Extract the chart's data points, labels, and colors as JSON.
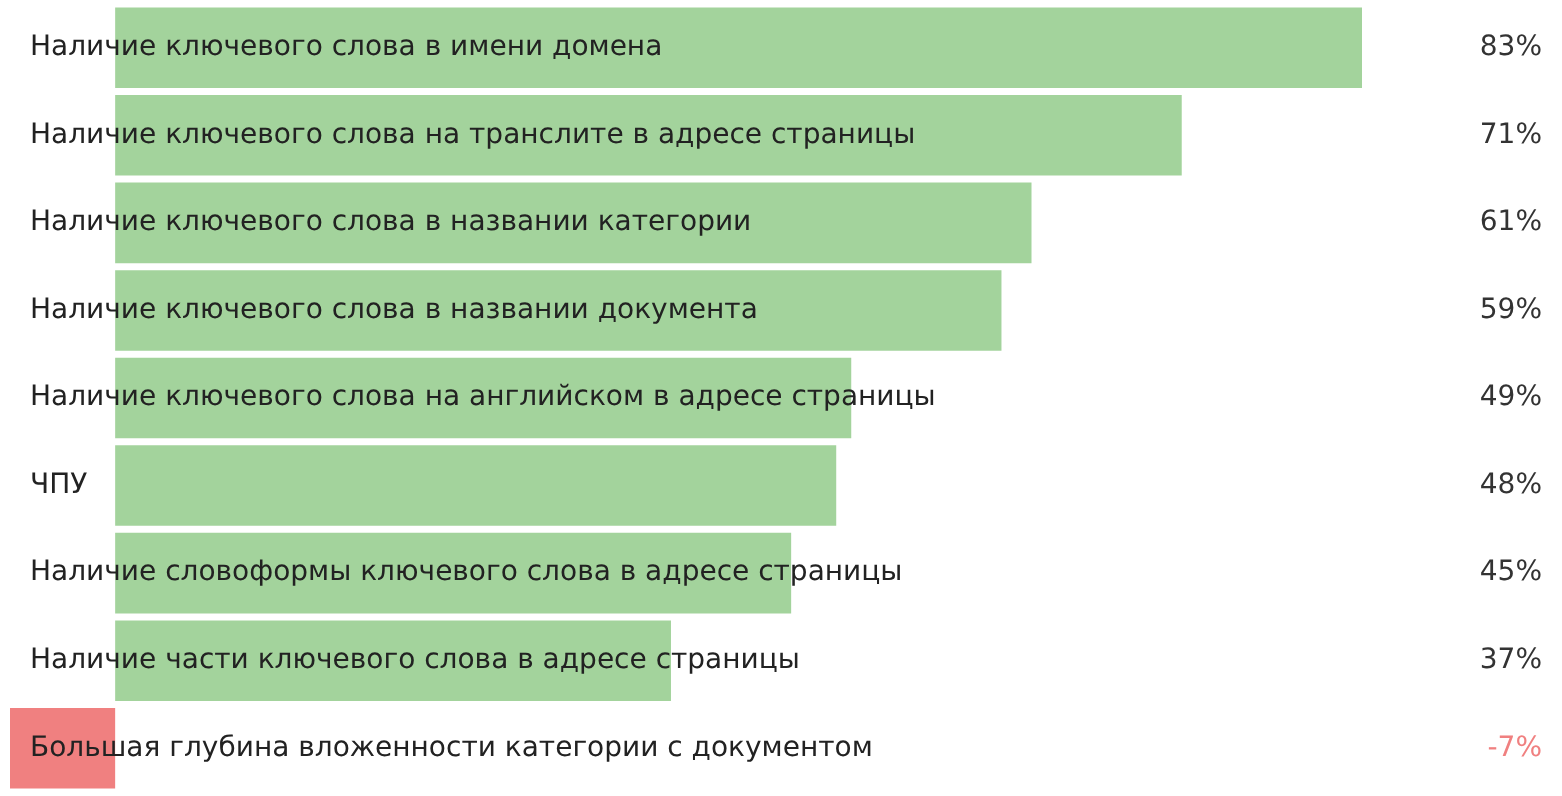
{
  "chart_data": {
    "type": "bar",
    "orientation": "horizontal",
    "categories": [
      "Наличие ключевого слова в имени домена",
      "Наличие ключевого слова на транслите в адресе страницы",
      "Наличие ключевого слова в названии категории",
      "Наличие ключевого слова в названии документа",
      "Наличие ключевого слова на английском в адресе страницы",
      "ЧПУ",
      "Наличие словоформы ключевого слова в адресе страницы",
      "Наличие части ключевого слова в адресе страницы",
      "Большая глубина вложенности категории с документом"
    ],
    "values": [
      83,
      71,
      61,
      59,
      49,
      48,
      45,
      37,
      -7
    ],
    "colors": [
      "#a3d39c",
      "#a3d39c",
      "#a3d39c",
      "#a3d39c",
      "#a3d39c",
      "#a3d39c",
      "#a3d39c",
      "#a3d39c",
      "#f08080"
    ],
    "value_labels": [
      "83%",
      "71%",
      "61%",
      "59%",
      "49%",
      "48%",
      "45%",
      "37%",
      "-7%"
    ],
    "legend": false
  }
}
